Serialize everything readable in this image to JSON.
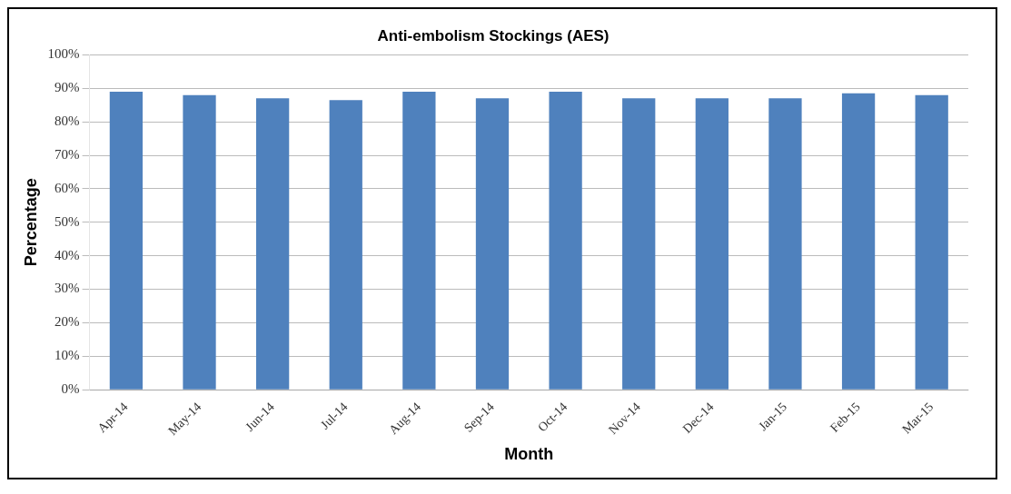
{
  "chart_data": {
    "type": "bar",
    "title": "Anti-embolism Stockings (AES)",
    "xlabel": "Month",
    "ylabel": "Percentage",
    "categories": [
      "Apr-14",
      "May-14",
      "Jun-14",
      "Jul-14",
      "Aug-14",
      "Sep-14",
      "Oct-14",
      "Nov-14",
      "Dec-14",
      "Jan-15",
      "Feb-15",
      "Mar-15"
    ],
    "values": [
      89,
      88,
      87,
      86.5,
      89,
      87,
      89,
      87,
      87,
      87,
      88.5,
      88
    ],
    "color": "#4f81bd",
    "ylim": [
      0,
      100
    ],
    "yticks": [
      {
        "value": 0,
        "label": "0%"
      },
      {
        "value": 10,
        "label": "10%"
      },
      {
        "value": 20,
        "label": "20%"
      },
      {
        "value": 30,
        "label": "30%"
      },
      {
        "value": 40,
        "label": "40%"
      },
      {
        "value": 50,
        "label": "50%"
      },
      {
        "value": 60,
        "label": "60%"
      },
      {
        "value": 70,
        "label": "70%"
      },
      {
        "value": 80,
        "label": "80%"
      },
      {
        "value": 90,
        "label": "90%"
      },
      {
        "value": 100,
        "label": "100%"
      }
    ],
    "grid": "y"
  }
}
